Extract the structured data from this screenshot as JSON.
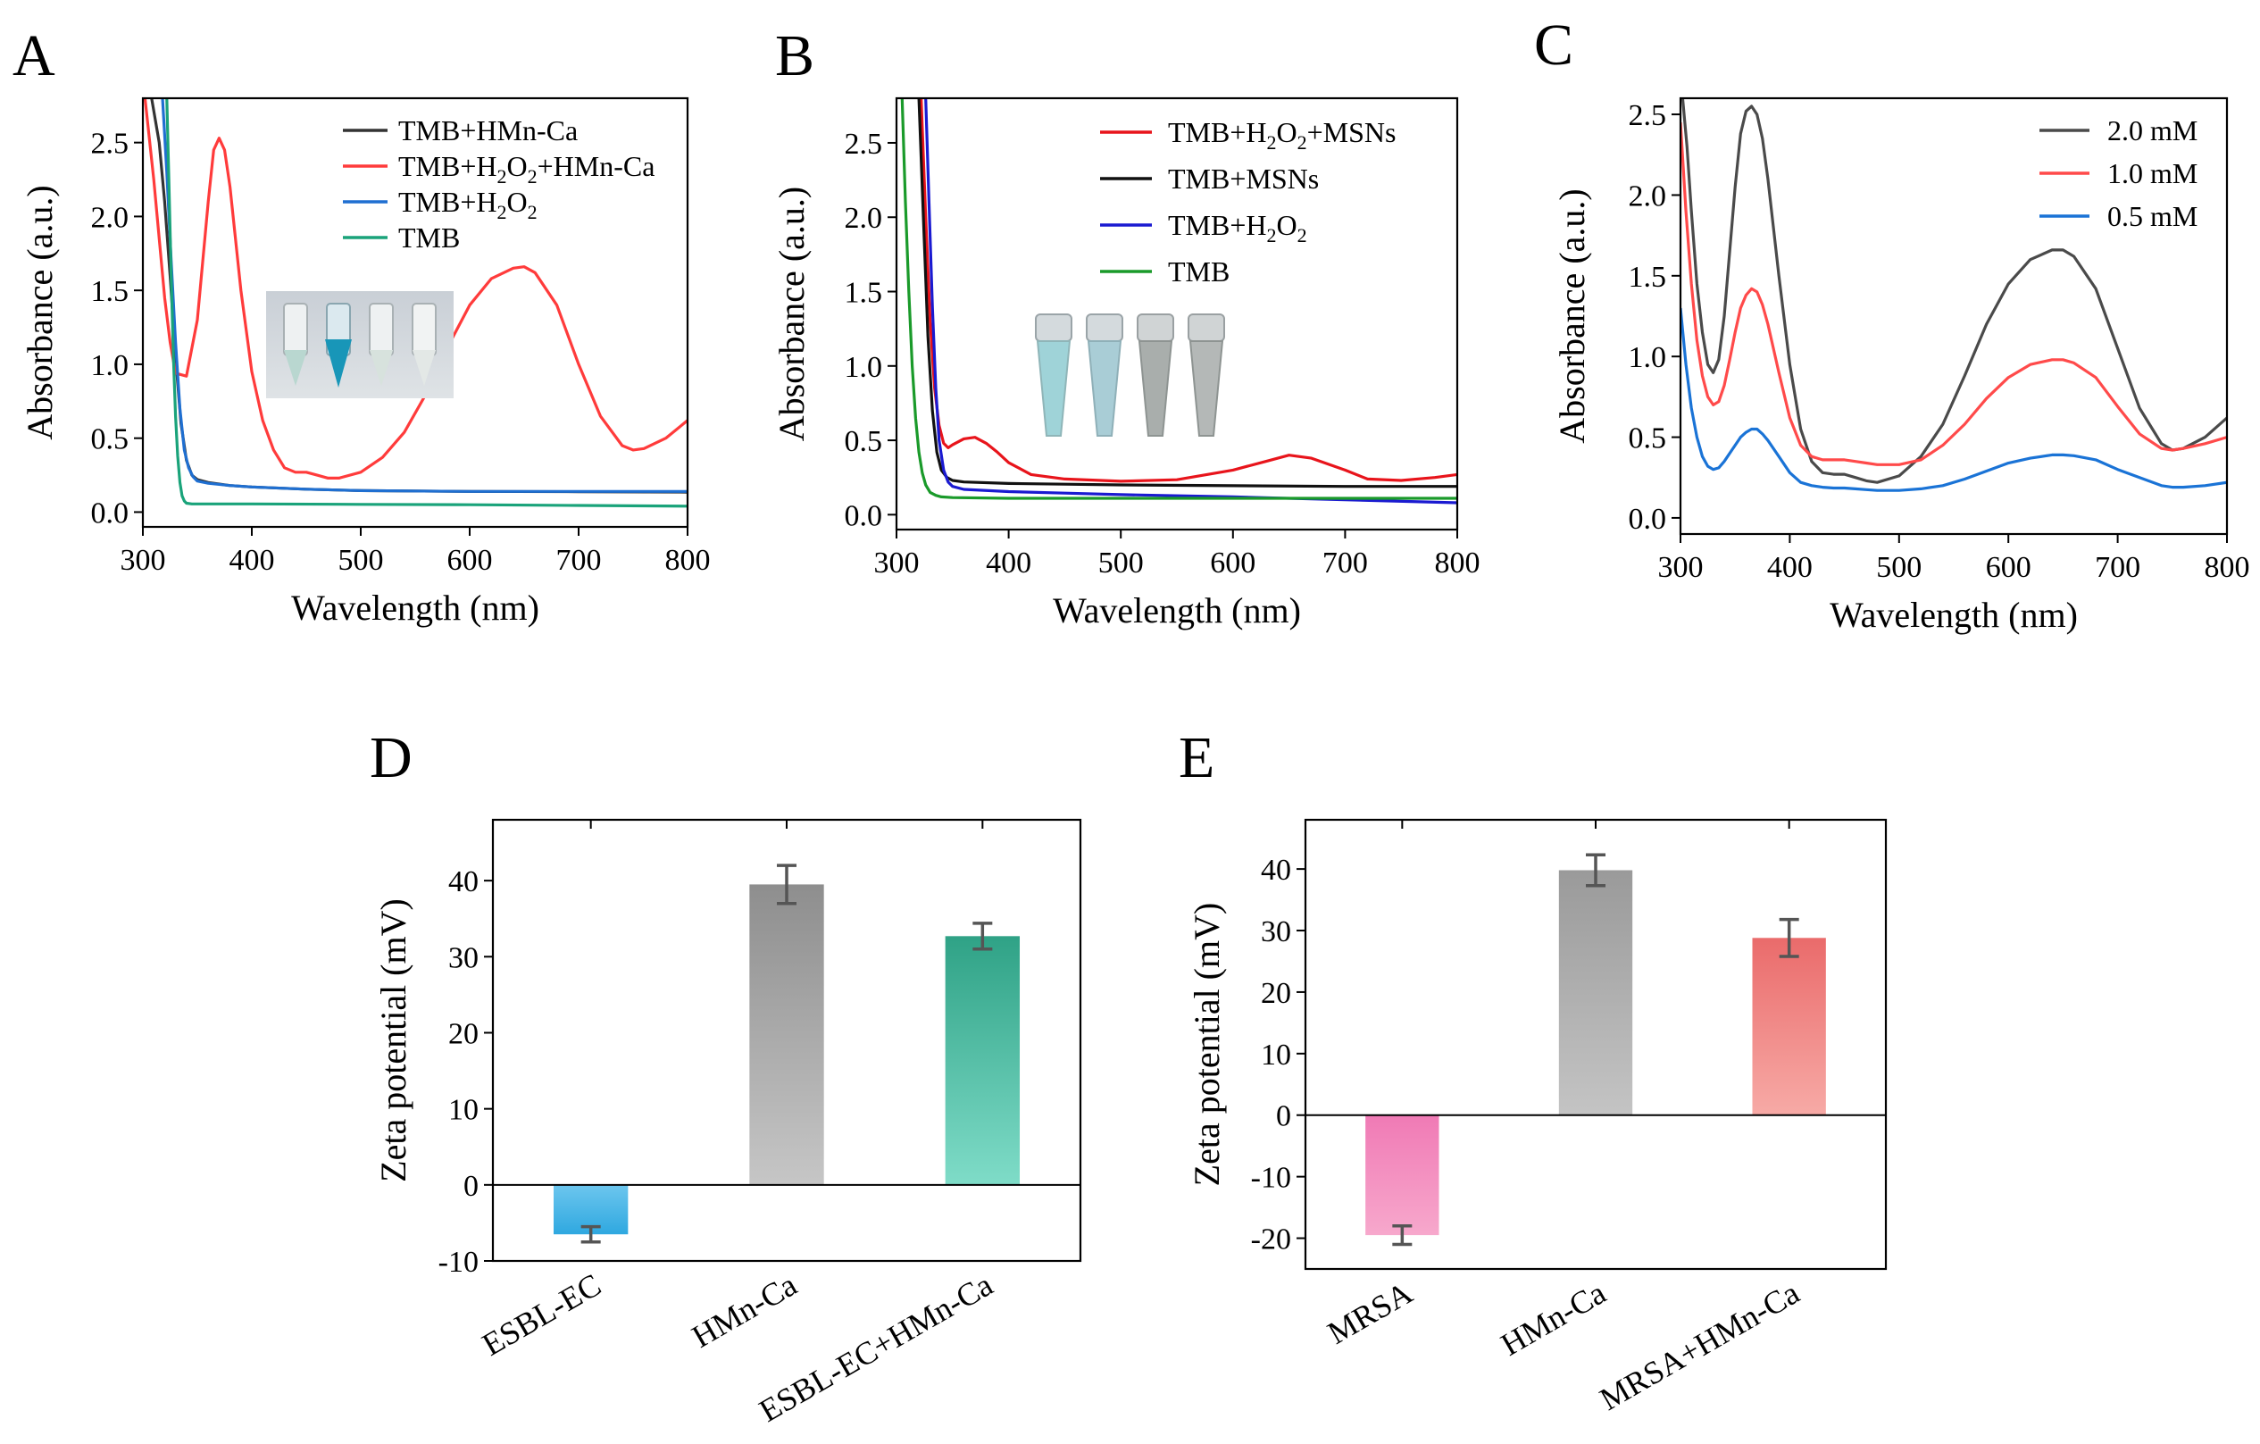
{
  "figure": {
    "panels": [
      "A",
      "B",
      "C",
      "D",
      "E"
    ]
  },
  "chart_data": [
    {
      "id": "A",
      "type": "line",
      "letter": "A",
      "xlabel": "Wavelength (nm)",
      "ylabel": "Absorbance (a.u.)",
      "xlim": [
        300,
        800
      ],
      "ylim": [
        -0.1,
        2.8
      ],
      "xticks": [
        300,
        400,
        500,
        600,
        700,
        800
      ],
      "yticks": [
        0.0,
        0.5,
        1.0,
        1.5,
        2.0,
        2.5
      ],
      "ytick_labels": [
        "0.0",
        "0.5",
        "1.0",
        "1.5",
        "2.0",
        "2.5"
      ],
      "legend_position": "top-right",
      "inset": "photo of four tubes, second tube blue",
      "series": [
        {
          "name": "TMB+HMn-Ca",
          "legend_main": "TMB+HMn-Ca",
          "color": "#333333",
          "x": [
            308,
            315,
            320,
            325,
            330,
            335,
            340,
            345,
            350,
            360,
            380,
            400,
            450,
            500,
            600,
            700,
            800
          ],
          "y": [
            2.8,
            2.5,
            2.1,
            1.6,
            1.05,
            0.6,
            0.35,
            0.25,
            0.22,
            0.2,
            0.18,
            0.17,
            0.155,
            0.145,
            0.14,
            0.138,
            0.135
          ]
        },
        {
          "name": "TMB+H2O2+HMn-Ca",
          "legend_main": "TMB+H",
          "legend_sub1": "2",
          "legend_mid": "O",
          "legend_sub2": "2",
          "legend_end": "+HMn-Ca",
          "color": "#ff3b3b",
          "x": [
            302,
            310,
            315,
            320,
            325,
            330,
            340,
            350,
            360,
            365,
            370,
            375,
            380,
            390,
            400,
            410,
            420,
            430,
            440,
            450,
            460,
            470,
            480,
            500,
            520,
            540,
            560,
            580,
            600,
            620,
            640,
            650,
            660,
            680,
            700,
            720,
            740,
            750,
            760,
            780,
            800
          ],
          "y": [
            2.8,
            2.25,
            1.85,
            1.45,
            1.15,
            0.94,
            0.92,
            1.3,
            2.1,
            2.45,
            2.53,
            2.45,
            2.2,
            1.5,
            0.95,
            0.62,
            0.42,
            0.3,
            0.27,
            0.27,
            0.25,
            0.23,
            0.23,
            0.27,
            0.37,
            0.54,
            0.8,
            1.12,
            1.4,
            1.58,
            1.65,
            1.66,
            1.62,
            1.4,
            1.0,
            0.65,
            0.45,
            0.42,
            0.43,
            0.5,
            0.62
          ]
        },
        {
          "name": "TMB+H2O2",
          "legend_main": "TMB+H",
          "legend_sub1": "2",
          "legend_mid": "O",
          "legend_sub2": "2",
          "legend_end": "",
          "color": "#1f6fd1",
          "x": [
            318,
            322,
            326,
            330,
            334,
            338,
            342,
            346,
            350,
            360,
            380,
            400,
            450,
            500,
            600,
            700,
            800
          ],
          "y": [
            2.8,
            2.3,
            1.7,
            1.15,
            0.7,
            0.42,
            0.3,
            0.24,
            0.21,
            0.195,
            0.18,
            0.17,
            0.155,
            0.145,
            0.14,
            0.14,
            0.14
          ]
        },
        {
          "name": "TMB",
          "legend_main": "TMB",
          "color": "#1aa37a",
          "x": [
            322,
            324,
            326,
            328,
            330,
            332,
            334,
            336,
            338,
            340,
            345,
            350,
            400,
            500,
            600,
            700,
            800
          ],
          "y": [
            2.8,
            2.2,
            1.6,
            1.05,
            0.65,
            0.38,
            0.2,
            0.11,
            0.075,
            0.06,
            0.055,
            0.055,
            0.055,
            0.052,
            0.05,
            0.045,
            0.04
          ]
        }
      ]
    },
    {
      "id": "B",
      "type": "line",
      "letter": "B",
      "xlabel": "Wavelength (nm)",
      "ylabel": "Absorbance (a.u.)",
      "xlim": [
        300,
        800
      ],
      "ylim": [
        -0.1,
        2.8
      ],
      "xticks": [
        300,
        400,
        500,
        600,
        700,
        800
      ],
      "yticks": [
        0.0,
        0.5,
        1.0,
        1.5,
        2.0,
        2.5
      ],
      "ytick_labels": [
        "0.0",
        "0.5",
        "1.0",
        "1.5",
        "2.0",
        "2.5"
      ],
      "legend_position": "top-right",
      "inset": "photo of four tubes, first two light blue",
      "series": [
        {
          "name": "TMB+H2O2+MSNs",
          "legend_main": "TMB+H",
          "legend_sub1": "2",
          "legend_mid": "O",
          "legend_sub2": "2",
          "legend_end": "+MSNs",
          "color": "#e8141b",
          "x": [
            322,
            326,
            330,
            334,
            338,
            342,
            346,
            350,
            360,
            370,
            380,
            390,
            400,
            420,
            450,
            500,
            550,
            600,
            630,
            650,
            670,
            700,
            720,
            750,
            780,
            800
          ],
          "y": [
            2.8,
            2.0,
            1.3,
            0.85,
            0.6,
            0.48,
            0.45,
            0.47,
            0.51,
            0.52,
            0.48,
            0.42,
            0.35,
            0.27,
            0.24,
            0.225,
            0.235,
            0.3,
            0.36,
            0.4,
            0.38,
            0.3,
            0.24,
            0.23,
            0.25,
            0.27
          ]
        },
        {
          "name": "TMB+MSNs",
          "legend_main": "TMB+MSNs",
          "color": "#111111",
          "x": [
            320,
            324,
            328,
            332,
            336,
            340,
            345,
            350,
            360,
            400,
            450,
            500,
            600,
            700,
            800
          ],
          "y": [
            2.8,
            2.0,
            1.2,
            0.7,
            0.42,
            0.3,
            0.25,
            0.23,
            0.22,
            0.21,
            0.205,
            0.2,
            0.195,
            0.19,
            0.19
          ]
        },
        {
          "name": "TMB+H2O2",
          "legend_main": "TMB+H",
          "legend_sub1": "2",
          "legend_mid": "O",
          "legend_sub2": "2",
          "legend_end": "",
          "color": "#1a1ad1",
          "x": [
            326,
            329,
            332,
            335,
            338,
            342,
            346,
            350,
            360,
            400,
            450,
            500,
            600,
            700,
            800
          ],
          "y": [
            2.8,
            2.1,
            1.4,
            0.85,
            0.5,
            0.3,
            0.22,
            0.19,
            0.17,
            0.155,
            0.145,
            0.135,
            0.12,
            0.1,
            0.08
          ]
        },
        {
          "name": "TMB",
          "legend_main": "TMB",
          "color": "#1a9a2a",
          "x": [
            305,
            308,
            311,
            314,
            317,
            320,
            323,
            326,
            330,
            335,
            340,
            350,
            400,
            500,
            600,
            700,
            800
          ],
          "y": [
            2.8,
            2.1,
            1.5,
            1.0,
            0.65,
            0.42,
            0.28,
            0.2,
            0.15,
            0.13,
            0.12,
            0.115,
            0.11,
            0.11,
            0.11,
            0.11,
            0.11
          ]
        }
      ]
    },
    {
      "id": "C",
      "type": "line",
      "letter": "C",
      "xlabel": "Wavelength (nm)",
      "ylabel": "Absorbance (a.u.)",
      "xlim": [
        300,
        800
      ],
      "ylim": [
        -0.1,
        2.6
      ],
      "xticks": [
        300,
        400,
        500,
        600,
        700,
        800
      ],
      "yticks": [
        0.0,
        0.5,
        1.0,
        1.5,
        2.0,
        2.5
      ],
      "ytick_labels": [
        "0.0",
        "0.5",
        "1.0",
        "1.5",
        "2.0",
        "2.5"
      ],
      "legend_position": "top-right",
      "series": [
        {
          "name": "2.0 mM",
          "legend_main": "2.0 mM",
          "color": "#4a4a4a",
          "x": [
            302,
            306,
            310,
            315,
            320,
            325,
            330,
            335,
            340,
            345,
            350,
            355,
            360,
            365,
            370,
            375,
            380,
            390,
            400,
            410,
            420,
            430,
            440,
            450,
            460,
            470,
            480,
            500,
            520,
            540,
            560,
            580,
            600,
            620,
            640,
            650,
            660,
            680,
            700,
            720,
            740,
            750,
            760,
            780,
            800
          ],
          "y": [
            2.6,
            2.3,
            1.9,
            1.45,
            1.15,
            0.95,
            0.9,
            0.98,
            1.25,
            1.65,
            2.05,
            2.38,
            2.52,
            2.55,
            2.5,
            2.35,
            2.1,
            1.5,
            0.95,
            0.55,
            0.35,
            0.28,
            0.27,
            0.27,
            0.25,
            0.23,
            0.22,
            0.26,
            0.38,
            0.58,
            0.88,
            1.2,
            1.45,
            1.6,
            1.66,
            1.66,
            1.62,
            1.42,
            1.05,
            0.68,
            0.46,
            0.42,
            0.43,
            0.5,
            0.62
          ]
        },
        {
          "name": "1.0 mM",
          "legend_main": "1.0 mM",
          "color": "#ff4a4a",
          "x": [
            300,
            305,
            310,
            315,
            320,
            325,
            330,
            335,
            340,
            345,
            350,
            355,
            360,
            365,
            370,
            375,
            380,
            390,
            400,
            410,
            420,
            430,
            440,
            450,
            460,
            470,
            480,
            500,
            520,
            540,
            560,
            580,
            600,
            620,
            640,
            650,
            660,
            680,
            700,
            720,
            740,
            750,
            760,
            780,
            800
          ],
          "y": [
            2.45,
            1.9,
            1.45,
            1.1,
            0.88,
            0.75,
            0.7,
            0.72,
            0.82,
            0.98,
            1.15,
            1.3,
            1.38,
            1.42,
            1.4,
            1.32,
            1.2,
            0.9,
            0.62,
            0.45,
            0.38,
            0.36,
            0.36,
            0.36,
            0.35,
            0.34,
            0.33,
            0.33,
            0.36,
            0.45,
            0.58,
            0.74,
            0.87,
            0.95,
            0.98,
            0.98,
            0.96,
            0.87,
            0.69,
            0.52,
            0.43,
            0.42,
            0.43,
            0.46,
            0.5
          ]
        },
        {
          "name": "0.5 mM",
          "legend_main": "0.5 mM",
          "color": "#1a73d6",
          "x": [
            300,
            305,
            310,
            315,
            320,
            325,
            330,
            335,
            340,
            345,
            350,
            355,
            360,
            365,
            370,
            375,
            380,
            390,
            400,
            410,
            420,
            430,
            440,
            450,
            460,
            470,
            480,
            500,
            520,
            540,
            560,
            580,
            600,
            620,
            640,
            650,
            660,
            680,
            700,
            720,
            740,
            750,
            760,
            780,
            800
          ],
          "y": [
            1.3,
            0.95,
            0.68,
            0.5,
            0.38,
            0.32,
            0.3,
            0.31,
            0.35,
            0.4,
            0.45,
            0.5,
            0.53,
            0.55,
            0.55,
            0.52,
            0.48,
            0.38,
            0.28,
            0.22,
            0.2,
            0.19,
            0.185,
            0.185,
            0.18,
            0.175,
            0.17,
            0.17,
            0.18,
            0.2,
            0.24,
            0.29,
            0.34,
            0.37,
            0.39,
            0.39,
            0.385,
            0.36,
            0.3,
            0.25,
            0.2,
            0.19,
            0.19,
            0.2,
            0.22
          ]
        }
      ]
    },
    {
      "id": "D",
      "type": "bar",
      "letter": "D",
      "ylabel": "Zeta potential (mV)",
      "ylim": [
        -10,
        48
      ],
      "yticks": [
        -10,
        0,
        10,
        20,
        30,
        40
      ],
      "ytick_labels": [
        "-10",
        "0",
        "10",
        "20",
        "30",
        "40"
      ],
      "categories": [
        "ESBL-EC",
        "HMn-Ca",
        "ESBL-EC+HMn-Ca"
      ],
      "values": [
        -6.5,
        39.5,
        32.7
      ],
      "errors": [
        1.0,
        2.5,
        1.7
      ],
      "colors": [
        [
          "#6cc6ee",
          "#2fa8e0"
        ],
        [
          "#8e8e8e",
          "#c6c6c6"
        ],
        [
          "#2fa286",
          "#7fdcc8"
        ]
      ]
    },
    {
      "id": "E",
      "type": "bar",
      "letter": "E",
      "ylabel": "Zeta potential (mV)",
      "ylim": [
        -25,
        48
      ],
      "yticks": [
        -20,
        -10,
        0,
        10,
        20,
        30,
        40
      ],
      "ytick_labels": [
        "-20",
        "-10",
        "0",
        "10",
        "20",
        "30",
        "40"
      ],
      "categories": [
        "MRSA",
        "HMn-Ca",
        "MRSA+HMn-Ca"
      ],
      "values": [
        -19.5,
        39.8,
        28.8
      ],
      "errors": [
        1.5,
        2.5,
        3.0
      ],
      "colors": [
        [
          "#f07ab5",
          "#f7a8cc"
        ],
        [
          "#9a9a9a",
          "#c4c4c4"
        ],
        [
          "#ea6b6b",
          "#f7aaa6"
        ]
      ]
    }
  ]
}
